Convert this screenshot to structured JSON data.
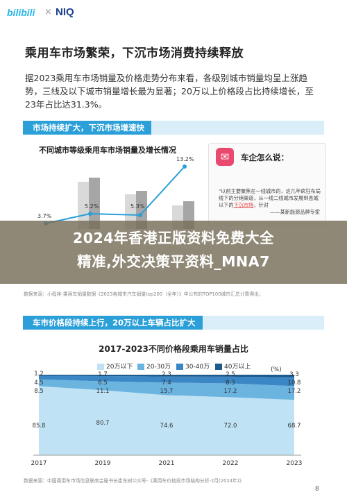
{
  "header": {
    "brand1": "bilibili",
    "sep": "×",
    "brand2": "NIQ"
  },
  "page_title": "乘用车市场繁荣，下沉市场消费持续释放",
  "intro": "据2023乘用车市场销量及价格走势分布来看，各级别城市销量均呈上涨趋势，三线及以下城市销量增长最为显著；20万以上价格段占比持续增长，至23年占比达31.3%。",
  "section1": {
    "label": "市场持续扩大，下沉市场增速快"
  },
  "chart1": {
    "title": "不同城市等级乘用车市场销量及增长情况",
    "growth_labels": [
      "3.7%",
      "5.2%",
      "5.3%",
      "13.2%"
    ]
  },
  "card": {
    "icon": "speech-icon",
    "title": "车企怎么说：",
    "quote": "\"以前主要聚焦在一线城市的，这几年疯狂布局线下的分销渠道，",
    "quote2": "从一线二线城市发展到县城以下的",
    "quote_highlight": "下沉市场",
    "quote_end": "，针对",
    "source": "——某新能源品牌专家"
  },
  "banner": {
    "line1": "2024年香港正版资料免费大全",
    "line2": "精准,外交决策平资料_MNA7"
  },
  "source1": "数据来源：小程序-乘用车销量数据《2023各城市汽车销量top200（全年）》中公布的TOP100城市汇总计算得出；",
  "section2": {
    "label": "车市价格段持续上行，20万以上车辆占比扩大"
  },
  "chart2": {
    "title": "2017-2023不同价格段乘用车销量占比",
    "unit": "(%)",
    "legend": [
      "20万以下",
      "20-30万",
      "30-40万",
      "40万以上"
    ]
  },
  "chart_data": {
    "type": "area",
    "title": "2017-2023不同价格段乘用车销量占比",
    "x": [
      "2017",
      "2019",
      "2021",
      "2022",
      "2023"
    ],
    "series": [
      {
        "name": "20万以下",
        "values": [
          85.8,
          80.7,
          74.6,
          72.0,
          68.7
        ],
        "color": "#bfe3f5"
      },
      {
        "name": "20-30万",
        "values": [
          8.5,
          11.1,
          15.7,
          17.2,
          17.2
        ],
        "color": "#6bb4e0"
      },
      {
        "name": "30-40万",
        "values": [
          4.5,
          6.5,
          7.4,
          8.3,
          10.8
        ],
        "color": "#3b86c4"
      },
      {
        "name": "40万以上",
        "values": [
          1.2,
          1.7,
          2.3,
          2.5,
          3.3
        ],
        "color": "#1e5a8c"
      }
    ],
    "ylim": [
      0,
      100
    ],
    "stacked": true
  },
  "source2": "数据来源：中国乘用车市场信息联席会秘书长崔东树公众号-《乘用车价格段市场结构分析-2月(2024年)》",
  "page_number": "8"
}
